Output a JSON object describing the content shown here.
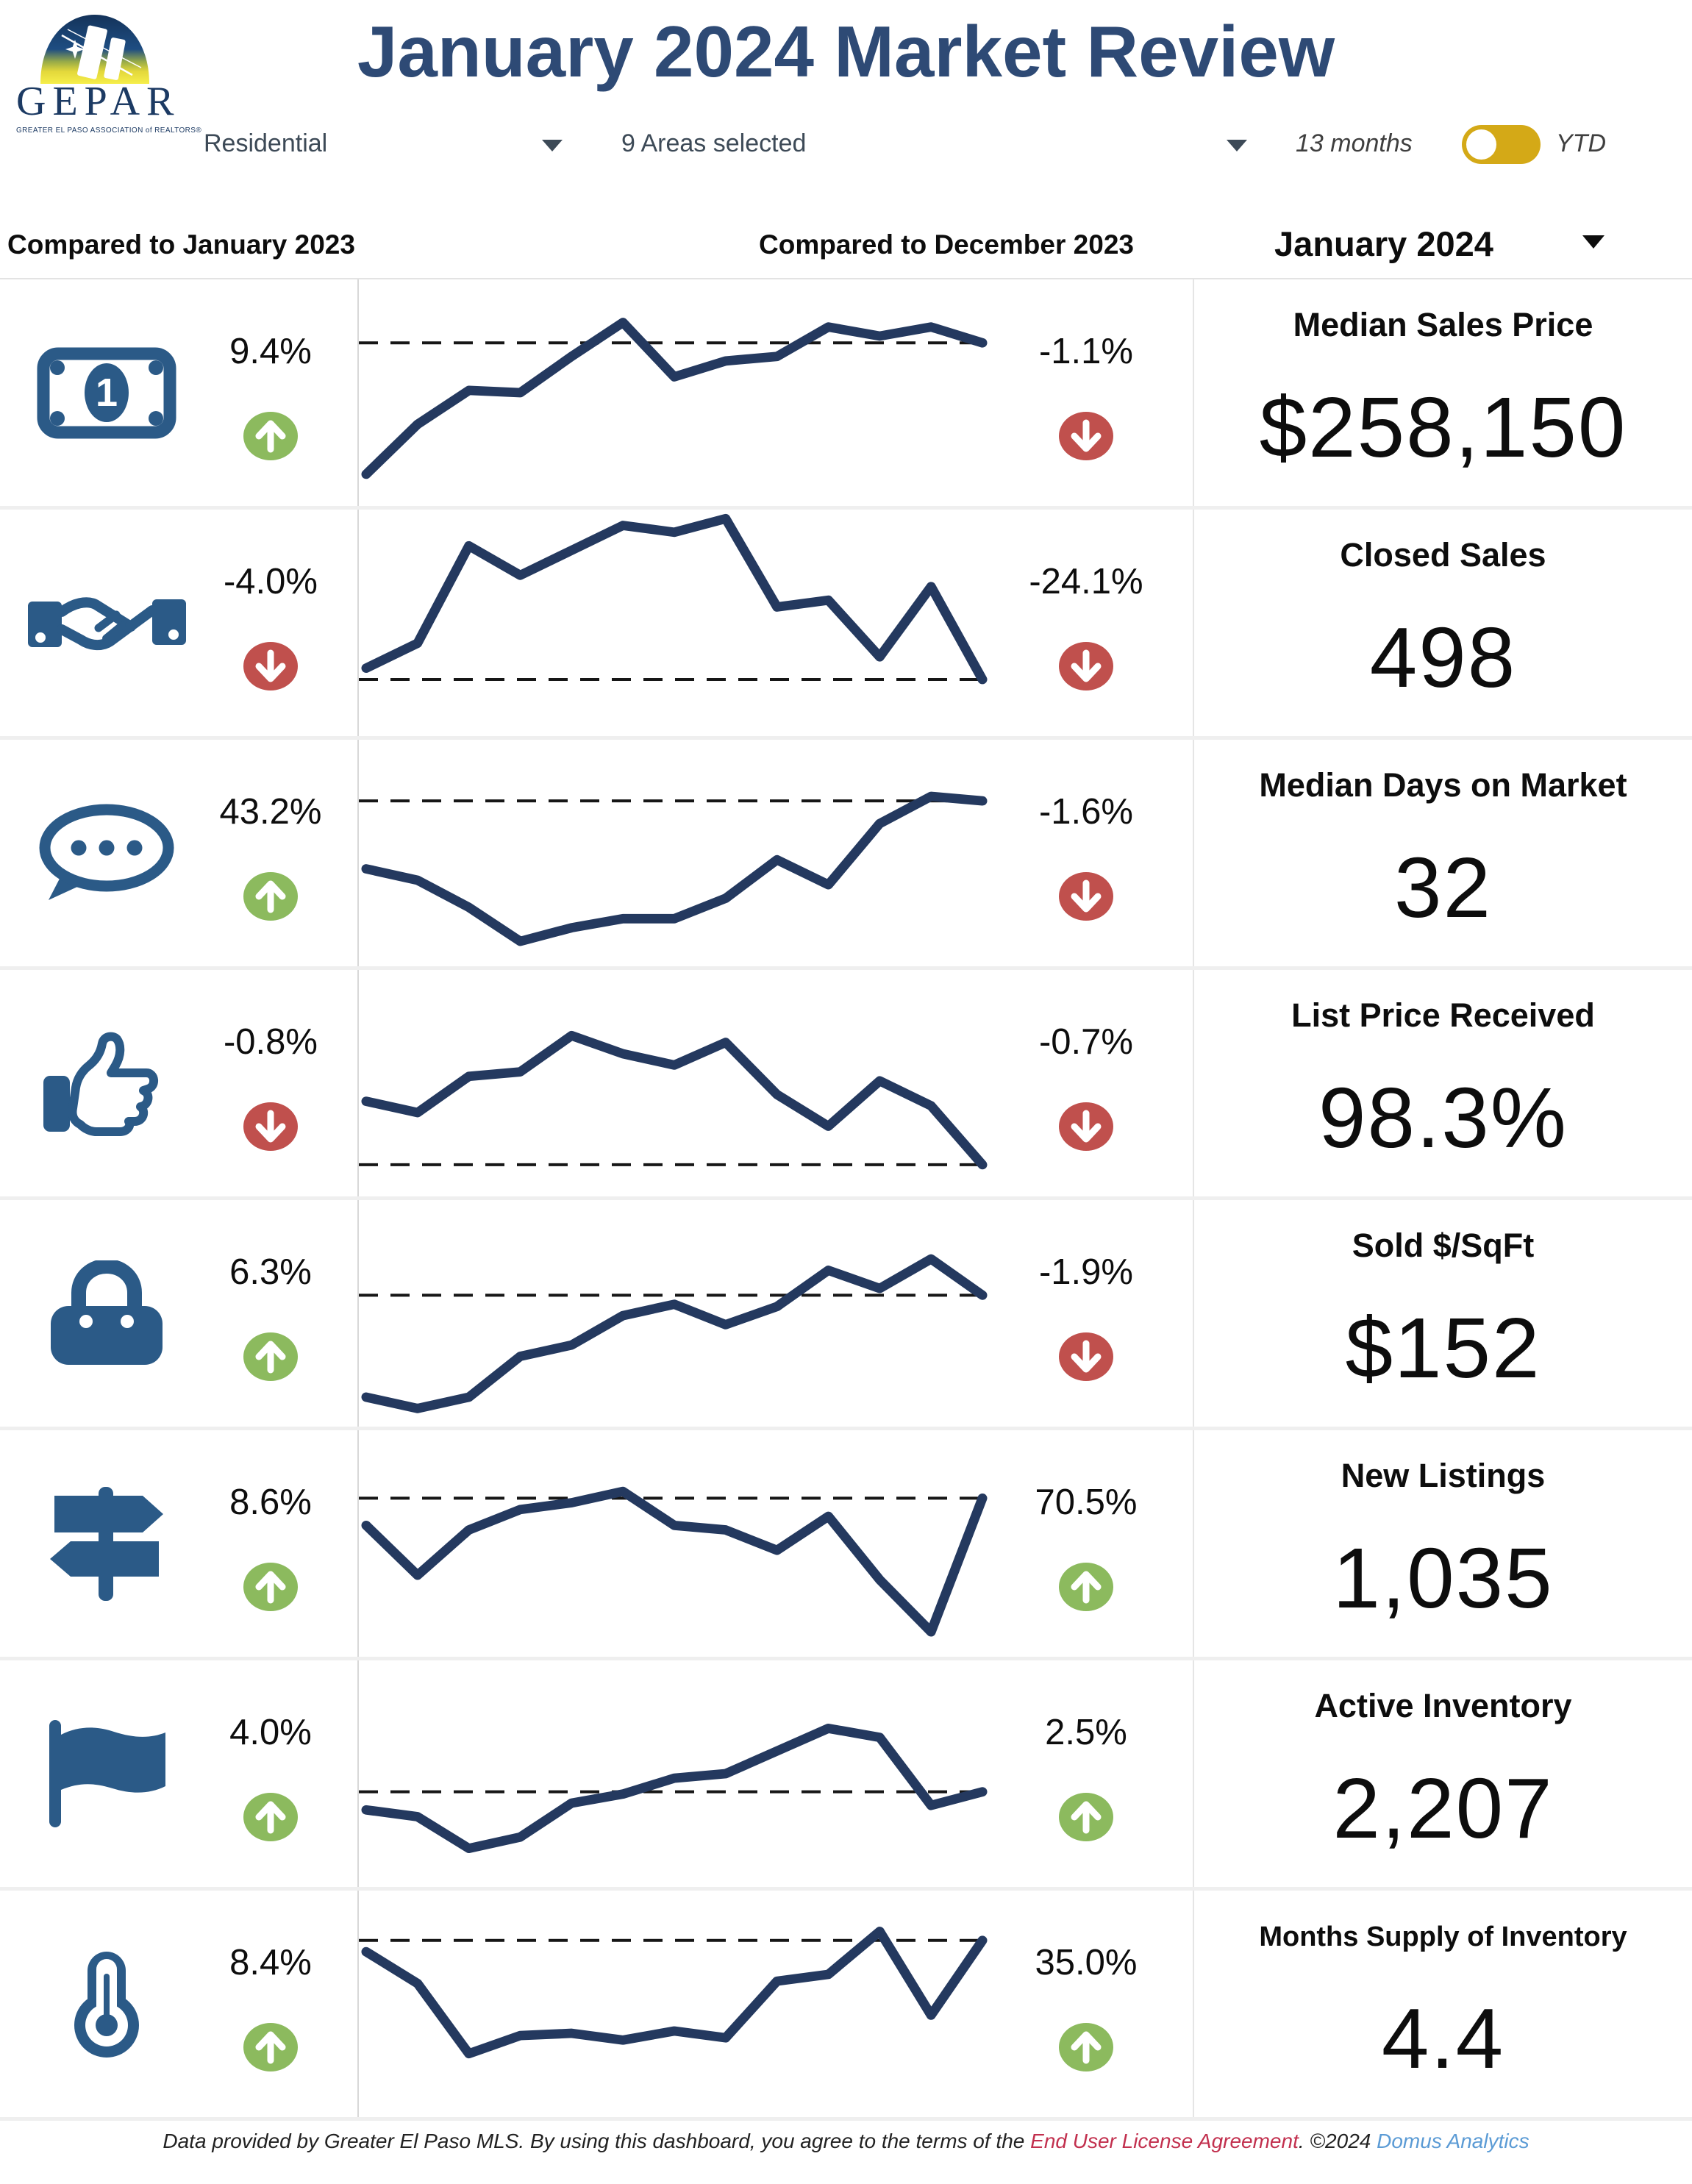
{
  "header": {
    "logo": {
      "acronym": "GEPAR",
      "subtitle": "GREATER EL PASO ASSOCIATION of REALTORS®"
    },
    "title": "January 2024 Market Review",
    "filters": {
      "property_type": "Residential",
      "areas": "9 Areas selected",
      "range_label": "13 months",
      "ytd_label": "YTD",
      "toggle_state": "13 months"
    }
  },
  "table": {
    "yoy_header": "Compared to January 2023",
    "mom_header": "Compared to December 2023",
    "period_selector": "January 2024"
  },
  "metrics": [
    {
      "icon": "money-bill-icon",
      "label": "Median Sales Price",
      "value": "$258,150",
      "yoy": {
        "text": "9.4%",
        "direction": "up"
      },
      "mom": {
        "text": "-1.1%",
        "direction": "down"
      }
    },
    {
      "icon": "handshake-icon",
      "label": "Closed Sales",
      "value": "498",
      "yoy": {
        "text": "-4.0%",
        "direction": "down"
      },
      "mom": {
        "text": "-24.1%",
        "direction": "down"
      }
    },
    {
      "icon": "chat-bubble-icon",
      "label": "Median Days on Market",
      "value": "32",
      "yoy": {
        "text": "43.2%",
        "direction": "up"
      },
      "mom": {
        "text": "-1.6%",
        "direction": "down"
      }
    },
    {
      "icon": "thumbs-up-icon",
      "label": "List Price Received",
      "value": "98.3%",
      "yoy": {
        "text": "-0.8%",
        "direction": "down"
      },
      "mom": {
        "text": "-0.7%",
        "direction": "down"
      }
    },
    {
      "icon": "handbag-icon",
      "label": "Sold $/SqFt",
      "value": "$152",
      "yoy": {
        "text": "6.3%",
        "direction": "up"
      },
      "mom": {
        "text": "-1.9%",
        "direction": "down"
      }
    },
    {
      "icon": "signpost-icon",
      "label": "New Listings",
      "value": "1,035",
      "yoy": {
        "text": "8.6%",
        "direction": "up"
      },
      "mom": {
        "text": "70.5%",
        "direction": "up"
      }
    },
    {
      "icon": "flag-icon",
      "label": "Active Inventory",
      "value": "2,207",
      "yoy": {
        "text": "4.0%",
        "direction": "up"
      },
      "mom": {
        "text": "2.5%",
        "direction": "up"
      }
    },
    {
      "icon": "thermometer-icon",
      "label": "Months Supply of Inventory",
      "value": "4.4",
      "yoy": {
        "text": "8.4%",
        "direction": "up"
      },
      "mom": {
        "text": "35.0%",
        "direction": "up"
      }
    }
  ],
  "chart_data": {
    "type": "line",
    "note": "Eight 13-month sparklines, one per metric row. No y-axis shown in UI; values are estimated relative levels 0-100 of row height. Dashed black reference line marks the current (Jan 2024) level.",
    "x": [
      "Jan 2023",
      "Feb 2023",
      "Mar 2023",
      "Apr 2023",
      "May 2023",
      "Jun 2023",
      "Jul 2023",
      "Aug 2023",
      "Sep 2023",
      "Oct 2023",
      "Nov 2023",
      "Dec 2023",
      "Jan 2024"
    ],
    "series": [
      {
        "name": "Median Sales Price",
        "current": "$258,150",
        "values": [
          14,
          36,
          51,
          50,
          66,
          81,
          57,
          64,
          66,
          79,
          75,
          79,
          72
        ]
      },
      {
        "name": "Closed Sales",
        "current": "498",
        "values": [
          30,
          41,
          84,
          71,
          82,
          93,
          90,
          96,
          57,
          60,
          35,
          66,
          25
        ]
      },
      {
        "name": "Median Days on Market",
        "current": "32",
        "values": [
          43,
          38,
          26,
          11,
          17,
          21,
          21,
          30,
          47,
          36,
          63,
          75,
          73
        ]
      },
      {
        "name": "List Price Received",
        "current": "98.3%",
        "values": [
          42,
          37,
          53,
          55,
          71,
          63,
          58,
          68,
          45,
          31,
          51,
          40,
          14
        ]
      },
      {
        "name": "Sold $/SqFt",
        "current": "$152",
        "values": [
          13,
          8,
          13,
          31,
          36,
          49,
          54,
          45,
          53,
          69,
          61,
          74,
          58
        ]
      },
      {
        "name": "New Listings",
        "current": "1,035",
        "values": [
          58,
          36,
          56,
          65,
          68,
          73,
          58,
          56,
          47,
          62,
          34,
          11,
          70
        ]
      },
      {
        "name": "Active Inventory",
        "current": "2,207",
        "values": [
          34,
          31,
          17,
          22,
          37,
          41,
          48,
          50,
          60,
          70,
          66,
          36,
          42
        ]
      },
      {
        "name": "Months Supply of Inventory",
        "current": "4.4",
        "values": [
          73,
          59,
          28,
          36,
          37,
          34,
          38,
          35,
          60,
          63,
          82,
          45,
          78
        ]
      }
    ],
    "legend": false,
    "grid": false
  },
  "footer": {
    "prefix": "Data provided by Greater El Paso MLS.  By using this dashboard, you agree to the terms of the ",
    "license": "End User License Agreement",
    "middle": ".  ©2024 ",
    "brand": "Domus Analytics"
  },
  "colors": {
    "navy": "#2e4a75",
    "icon_blue": "#2b5a87",
    "spark_navy": "#24395f",
    "up_green": "#8cba5e",
    "down_red": "#c0504d",
    "toggle_gold": "#d4a917",
    "link_red": "#c2304e",
    "link_blue": "#5b9bd5"
  }
}
